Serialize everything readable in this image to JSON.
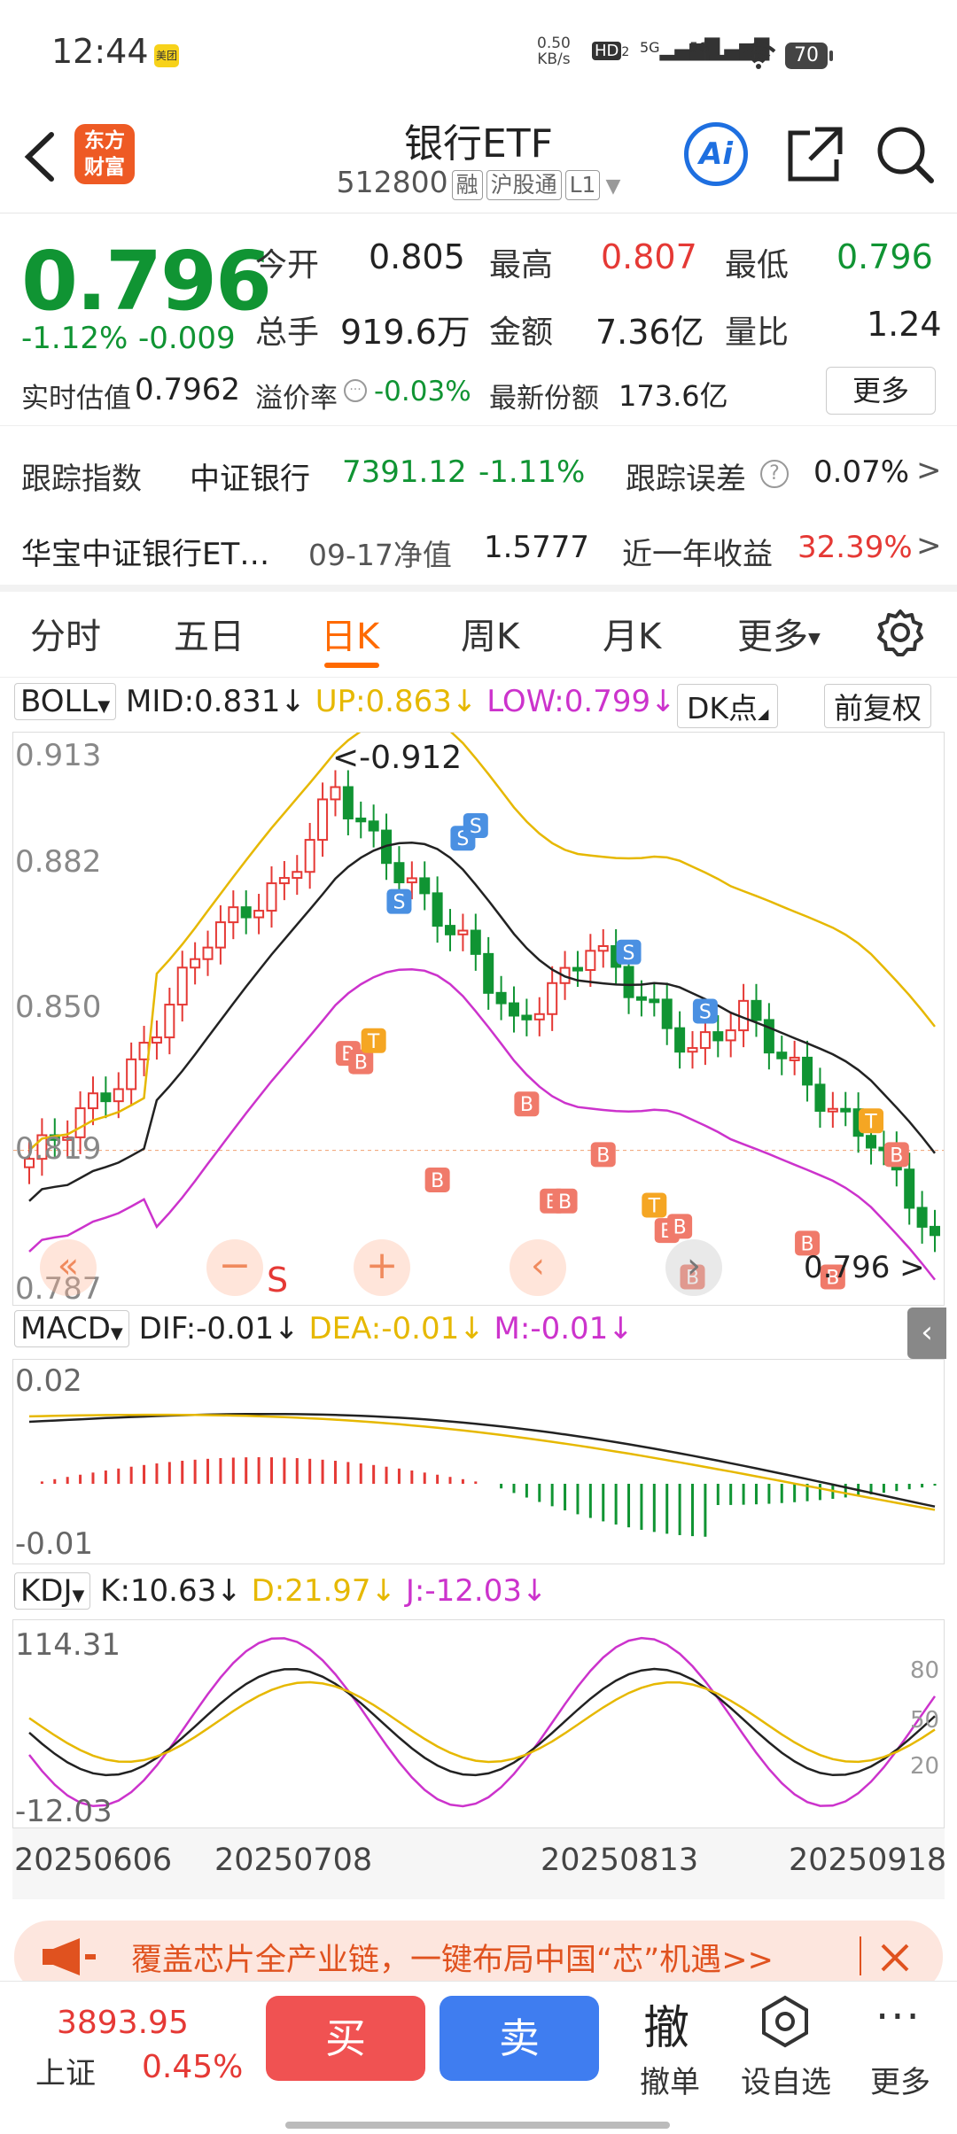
{
  "status": {
    "time": "12:44",
    "app_badge": "美团",
    "speed_value": "0.50",
    "speed_unit": "KB/s",
    "hd": "HD",
    "hd_sub": "2",
    "sig1": "5G",
    "sig2": "5G",
    "battery": "70"
  },
  "header": {
    "title": "银行ETF",
    "code": "512800",
    "tags": [
      "融",
      "沪股通",
      "L1"
    ],
    "logo_line1": "东方",
    "logo_line2": "财富",
    "ai": "Ai"
  },
  "quote": {
    "price": "0.796",
    "change_pct": "-1.12%",
    "change_abs": "-0.009",
    "open_label": "今开",
    "open": "0.805",
    "high_label": "最高",
    "high": "0.807",
    "low_label": "最低",
    "low": "0.796",
    "volume_label": "总手",
    "volume": "919.6万",
    "amount_label": "金额",
    "amount": "7.36亿",
    "ratio_label": "量比",
    "ratio": "1.24",
    "est_label": "实时估值",
    "est": "0.7962",
    "premium_label": "溢价率",
    "premium": "-0.03%",
    "shares_label": "最新份额",
    "shares": "173.6亿",
    "more": "更多"
  },
  "tracking": {
    "label": "跟踪指数",
    "index": "中证银行",
    "index_value": "7391.12",
    "index_change": "-1.11%",
    "err_label": "跟踪误差",
    "err": "0.07%",
    "arrow": ">"
  },
  "fund": {
    "name": "华宝中证银行ET…",
    "nav_label": "09-17净值",
    "nav": "1.5777",
    "ret_label": "近一年收益",
    "ret": "32.39%",
    "arrow": ">"
  },
  "tabs": [
    "分时",
    "五日",
    "日K",
    "周K",
    "月K",
    "更多"
  ],
  "boll": {
    "name": "BOLL",
    "mid": "MID:0.831",
    "up": "UP:0.863",
    "low": "LOW:0.799",
    "dk": "DK点",
    "fq": "前复权",
    "yaxis": [
      "0.913",
      "0.882",
      "0.850",
      "0.819",
      "0.787"
    ],
    "max_note": "<-0.912",
    "last_note": "0.796 >"
  },
  "macd": {
    "name": "MACD",
    "dif": "DIF:-0.01",
    "dea": "DEA:-0.01",
    "m": "M:-0.01",
    "yaxis": [
      "0.02",
      "-0.01"
    ]
  },
  "kdj": {
    "name": "KDJ",
    "k": "K:10.63",
    "d": "D:21.97",
    "j": "J:-12.03",
    "yaxis": [
      "114.31",
      "-12.03"
    ],
    "levels": [
      "80",
      "50",
      "20"
    ]
  },
  "dates": [
    "20250606",
    "20250708",
    "20250813",
    "20250918"
  ],
  "colors": {
    "up": "#e53935",
    "down": "#109433",
    "mid": "#222222",
    "upper": "#e6b800",
    "lower": "#cc33cc",
    "accent": "#ff6a00"
  },
  "banner": {
    "text": "覆盖芯片全产业链，一键布局中国“芯”机遇>>"
  },
  "bottom": {
    "index_value": "3893.95",
    "index_name": "上证",
    "index_change": "0.45%",
    "buy": "买",
    "sell": "卖",
    "cancel_icon": "撤",
    "cancel": "撤单",
    "watch": "设自选",
    "more": "更多"
  },
  "signal_letters": {
    "s": "S",
    "b": "B",
    "t": "T"
  },
  "overlay_icons": [
    "double-chevron-left-icon",
    "minus-icon",
    "plus-icon",
    "chevron-left-icon",
    "chevron-right-icon"
  ]
}
